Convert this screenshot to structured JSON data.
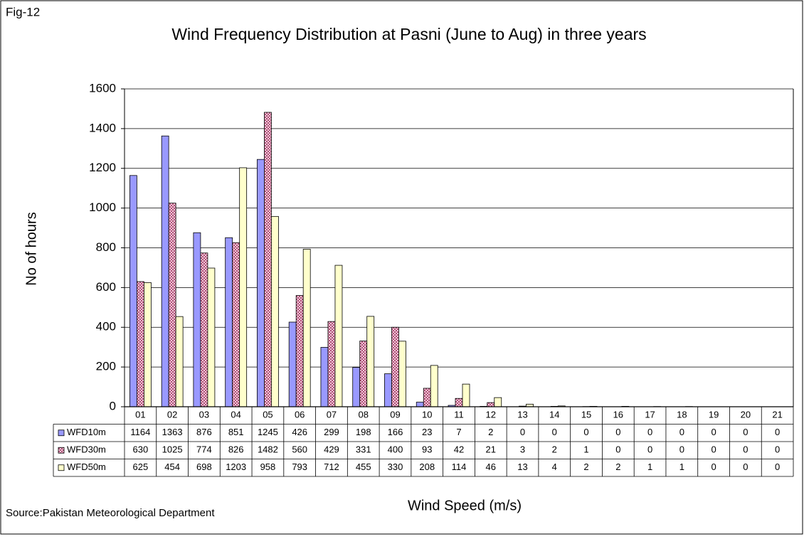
{
  "fig_label": "Fig-12",
  "source": "Source:Pakistan Meteorological Department",
  "chart_data": {
    "type": "bar",
    "title": "Wind Frequency Distribution at Pasni (June to Aug) in three years",
    "ylabel": "No of hours",
    "xlabel": "Wind Speed (m/s)",
    "categories": [
      "01",
      "02",
      "03",
      "04",
      "05",
      "06",
      "07",
      "08",
      "09",
      "10",
      "11",
      "12",
      "13",
      "14",
      "15",
      "16",
      "17",
      "18",
      "19",
      "20",
      "21"
    ],
    "series": [
      {
        "name": "WFD10m",
        "color": "#9999ff",
        "values": [
          1164,
          1363,
          876,
          851,
          1245,
          426,
          299,
          198,
          166,
          23,
          7,
          2,
          0,
          0,
          0,
          0,
          0,
          0,
          0,
          0,
          0
        ]
      },
      {
        "name": "WFD30m",
        "color": "#d890ae",
        "values": [
          630,
          1025,
          774,
          826,
          1482,
          560,
          429,
          331,
          400,
          93,
          42,
          21,
          3,
          2,
          1,
          0,
          0,
          0,
          0,
          0,
          0
        ]
      },
      {
        "name": "WFD50m",
        "color": "#ffffcc",
        "values": [
          625,
          454,
          698,
          1203,
          958,
          793,
          712,
          455,
          330,
          208,
          114,
          46,
          13,
          4,
          2,
          2,
          1,
          1,
          0,
          0,
          0
        ]
      }
    ],
    "ylim": [
      0,
      1600
    ],
    "yticks": [
      0,
      200,
      400,
      600,
      800,
      1000,
      1200,
      1400,
      1600
    ],
    "grid": true
  }
}
